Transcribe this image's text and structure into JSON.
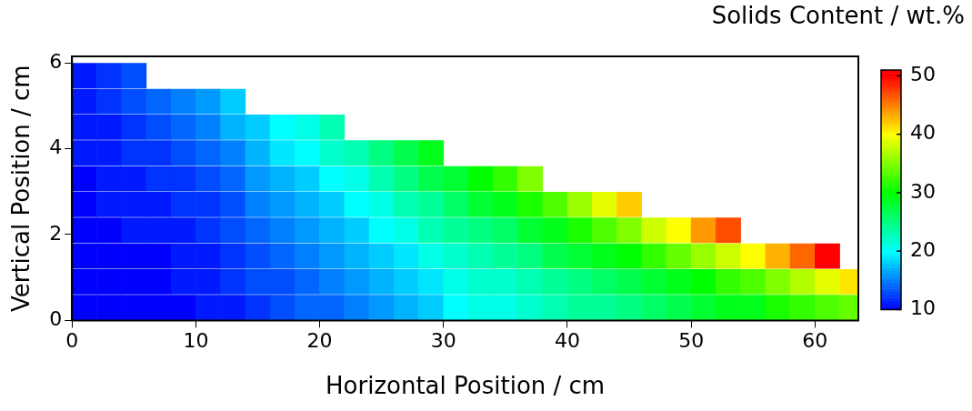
{
  "chart_data": {
    "type": "scatter",
    "xlabel": "Horizontal Position / cm",
    "ylabel": "Vertical Position / cm",
    "clabel": "Solids Content / wt.%",
    "marker": "square",
    "xlim": [
      0,
      63.5
    ],
    "xticks": [
      0,
      10,
      20,
      30,
      40,
      50,
      60
    ],
    "ylim": [
      0,
      6.15
    ],
    "yticks": [
      0,
      2,
      4,
      6
    ],
    "clim": [
      10,
      51
    ],
    "cticks": [
      10,
      20,
      30,
      40,
      50
    ],
    "x": [
      1,
      1,
      1,
      1,
      1,
      1,
      1,
      1,
      1,
      1,
      3,
      3,
      3,
      3,
      3,
      3,
      3,
      3,
      3,
      3,
      5,
      5,
      5,
      5,
      5,
      5,
      5,
      5,
      5,
      5,
      7,
      7,
      7,
      7,
      7,
      7,
      7,
      7,
      7,
      9,
      9,
      9,
      9,
      9,
      9,
      9,
      9,
      9,
      11,
      11,
      11,
      11,
      11,
      11,
      11,
      11,
      11,
      13,
      13,
      13,
      13,
      13,
      13,
      13,
      13,
      13,
      15,
      15,
      15,
      15,
      15,
      15,
      15,
      15,
      17,
      17,
      17,
      17,
      17,
      17,
      17,
      17,
      19,
      19,
      19,
      19,
      19,
      19,
      19,
      19,
      21,
      21,
      21,
      21,
      21,
      21,
      21,
      21,
      23,
      23,
      23,
      23,
      23,
      23,
      23,
      25,
      25,
      25,
      25,
      25,
      25,
      25,
      27,
      27,
      27,
      27,
      27,
      27,
      27,
      29,
      29,
      29,
      29,
      29,
      29,
      29,
      31,
      31,
      31,
      31,
      31,
      31,
      33,
      33,
      33,
      33,
      33,
      33,
      35,
      35,
      35,
      35,
      35,
      35,
      37,
      37,
      37,
      37,
      37,
      37,
      39,
      39,
      39,
      39,
      39,
      41,
      41,
      41,
      41,
      41,
      43,
      43,
      43,
      43,
      43,
      45,
      45,
      45,
      45,
      45,
      47,
      47,
      47,
      47,
      49,
      49,
      49,
      49,
      51,
      51,
      51,
      51,
      53,
      53,
      53,
      53,
      55,
      55,
      55,
      57,
      57,
      57,
      59,
      59,
      59,
      61,
      61,
      61,
      63,
      63
    ],
    "values": [
      0.3,
      0.9,
      1.5,
      2.1,
      2.7,
      3.3,
      3.9,
      4.5,
      5.1,
      5.7,
      0.3,
      0.9,
      1.5,
      2.1,
      2.7,
      3.3,
      3.9,
      4.5,
      5.1,
      5.7,
      0.3,
      0.9,
      1.5,
      2.1,
      2.7,
      3.3,
      3.9,
      4.5,
      5.1,
      5.7,
      0.3,
      0.9,
      1.5,
      2.1,
      2.7,
      3.3,
      3.9,
      4.5,
      5.1,
      0.3,
      0.9,
      1.5,
      2.1,
      2.7,
      3.3,
      3.9,
      4.5,
      5.1,
      0.3,
      0.9,
      1.5,
      2.1,
      2.7,
      3.3,
      3.9,
      4.5,
      5.1,
      0.3,
      0.9,
      1.5,
      2.1,
      2.7,
      3.3,
      3.9,
      4.5,
      5.1,
      0.3,
      0.9,
      1.5,
      2.1,
      2.7,
      3.3,
      3.9,
      4.5,
      0.3,
      0.9,
      1.5,
      2.1,
      2.7,
      3.3,
      3.9,
      4.5,
      0.3,
      0.9,
      1.5,
      2.1,
      2.7,
      3.3,
      3.9,
      4.5,
      0.3,
      0.9,
      1.5,
      2.1,
      2.7,
      3.3,
      3.9,
      4.5,
      0.3,
      0.9,
      1.5,
      2.1,
      2.7,
      3.3,
      3.9,
      0.3,
      0.9,
      1.5,
      2.1,
      2.7,
      3.3,
      3.9,
      0.3,
      0.9,
      1.5,
      2.1,
      2.7,
      3.3,
      3.9,
      0.3,
      0.9,
      1.5,
      2.1,
      2.7,
      3.3,
      3.9,
      0.3,
      0.9,
      1.5,
      2.1,
      2.7,
      3.3,
      0.3,
      0.9,
      1.5,
      2.1,
      2.7,
      3.3,
      0.3,
      0.9,
      1.5,
      2.1,
      2.7,
      3.3,
      0.3,
      0.9,
      1.5,
      2.1,
      2.7,
      3.3,
      0.3,
      0.9,
      1.5,
      2.1,
      2.7,
      0.3,
      0.9,
      1.5,
      2.1,
      2.7,
      0.3,
      0.9,
      1.5,
      2.1,
      2.7,
      0.3,
      0.9,
      1.5,
      2.1,
      2.7,
      0.3,
      0.9,
      1.5,
      2.1,
      0.3,
      0.9,
      1.5,
      2.1,
      0.3,
      0.9,
      1.5,
      2.1,
      0.3,
      0.9,
      1.5,
      2.1,
      0.3,
      0.9,
      1.5,
      0.3,
      0.9,
      1.5,
      0.3,
      0.9,
      1.5,
      0.3,
      0.9,
      1.5,
      0.3,
      0.9
    ],
    "cvalues": [
      10,
      10,
      10,
      10,
      10,
      10,
      11,
      11,
      11,
      11,
      10,
      10,
      10,
      10,
      11,
      11,
      11,
      11,
      12,
      12,
      10,
      10,
      10,
      11,
      11,
      11,
      12,
      12,
      13,
      13,
      10,
      10,
      10,
      11,
      11,
      12,
      12,
      13,
      14,
      10,
      11,
      11,
      11,
      12,
      12,
      13,
      14,
      15,
      11,
      11,
      11,
      12,
      12,
      13,
      14,
      15,
      16,
      11,
      12,
      12,
      13,
      13,
      14,
      15,
      17,
      18,
      12,
      13,
      13,
      14,
      15,
      16,
      17,
      18,
      13,
      13,
      14,
      15,
      16,
      17,
      19,
      20,
      14,
      14,
      15,
      16,
      17,
      18,
      20,
      21,
      14,
      15,
      16,
      17,
      18,
      20,
      22,
      23,
      15,
      16,
      17,
      18,
      20,
      21,
      23,
      16,
      17,
      18,
      20,
      21,
      23,
      25,
      17,
      18,
      19,
      21,
      23,
      25,
      27,
      18,
      19,
      21,
      23,
      24,
      27,
      29,
      20,
      21,
      22,
      24,
      26,
      28,
      21,
      22,
      23,
      25,
      28,
      30,
      21,
      22,
      24,
      26,
      29,
      32,
      22,
      23,
      25,
      28,
      31,
      35,
      23,
      24,
      27,
      29,
      33,
      24,
      25,
      28,
      31,
      36,
      24,
      26,
      29,
      33,
      39,
      25,
      27,
      30,
      35,
      42,
      26,
      28,
      32,
      38,
      27,
      29,
      34,
      40,
      28,
      30,
      36,
      44,
      29,
      32,
      38,
      47,
      29,
      33,
      40,
      31,
      35,
      43,
      32,
      37,
      46,
      33,
      39,
      50,
      34,
      41
    ]
  }
}
